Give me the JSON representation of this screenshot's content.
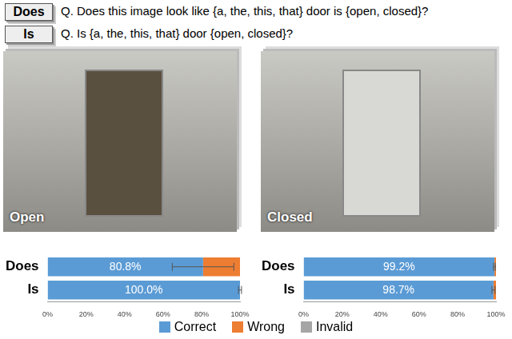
{
  "questions": [
    {
      "tag": "Does",
      "text": "Q. Does this image look like {a, the, this, that} door is {open, closed}?"
    },
    {
      "tag": "Is",
      "text": "Q. Is {a, the, this, that} door {open, closed}?"
    }
  ],
  "chart_data": [
    {
      "type": "bar",
      "title": "Open",
      "orientation": "horizontal",
      "stacked": true,
      "grid": false,
      "legend": "bottom",
      "data_labels": true,
      "categories": [
        "Does",
        "Is"
      ],
      "series": [
        {
          "name": "Correct",
          "color": "#5b9bd5",
          "values": [
            80.8,
            100.0
          ],
          "value_labels": [
            "80.8%",
            "100.0%"
          ],
          "errors": [
            16,
            0.8
          ]
        },
        {
          "name": "Wrong",
          "color": "#ed7d31",
          "values": [
            19.2,
            0
          ]
        },
        {
          "name": "Invalid",
          "color": "#a5a5a5",
          "values": [
            0,
            0
          ]
        }
      ],
      "xlim": [
        0,
        100
      ],
      "xticks": [
        {
          "value": 0,
          "label": "0%"
        },
        {
          "value": 20,
          "label": "20%"
        },
        {
          "value": 40,
          "label": "40%"
        },
        {
          "value": 60,
          "label": "60%"
        },
        {
          "value": 80,
          "label": "80%"
        },
        {
          "value": 100,
          "label": "100%"
        }
      ]
    },
    {
      "type": "bar",
      "title": "Closed",
      "orientation": "horizontal",
      "stacked": true,
      "grid": false,
      "data_labels": true,
      "categories": [
        "Does",
        "Is"
      ],
      "series": [
        {
          "name": "Correct",
          "color": "#5b9bd5",
          "values": [
            99.2,
            98.7
          ],
          "value_labels": [
            "99.2%",
            "98.7%"
          ],
          "errors": [
            0.5,
            0.8
          ]
        },
        {
          "name": "Wrong",
          "color": "#ed7d31",
          "values": [
            0.8,
            1.3
          ]
        },
        {
          "name": "Invalid",
          "color": "#a5a5a5",
          "values": [
            0,
            0
          ]
        }
      ],
      "xlim": [
        0,
        100
      ],
      "xticks": [
        {
          "value": 0,
          "label": "0%"
        },
        {
          "value": 20,
          "label": "20%"
        },
        {
          "value": 40,
          "label": "40%"
        },
        {
          "value": 60,
          "label": "60%"
        },
        {
          "value": 80,
          "label": "80%"
        },
        {
          "value": 100,
          "label": "100%"
        }
      ]
    }
  ]
}
